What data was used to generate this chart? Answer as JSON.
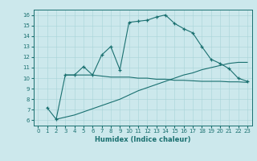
{
  "xlabel": "Humidex (Indice chaleur)",
  "ylabel": "",
  "bg_color": "#cce8ec",
  "line_color": "#1a7070",
  "xlim": [
    -0.5,
    23.5
  ],
  "ylim": [
    5.5,
    16.5
  ],
  "xticks": [
    0,
    1,
    2,
    3,
    4,
    5,
    6,
    7,
    8,
    9,
    10,
    11,
    12,
    13,
    14,
    15,
    16,
    17,
    18,
    19,
    20,
    21,
    22,
    23
  ],
  "yticks": [
    6,
    7,
    8,
    9,
    10,
    11,
    12,
    13,
    14,
    15,
    16
  ],
  "curve1_x": [
    1,
    2,
    3,
    4,
    5,
    6,
    7,
    8,
    9,
    10,
    11,
    12,
    13,
    14,
    15,
    16,
    17,
    18,
    19,
    20,
    21,
    22,
    23
  ],
  "curve1_y": [
    7.2,
    6.1,
    10.3,
    10.3,
    11.1,
    10.3,
    12.2,
    13.0,
    10.8,
    15.3,
    15.4,
    15.5,
    15.8,
    16.0,
    15.2,
    14.7,
    14.3,
    13.0,
    11.8,
    11.4,
    10.9,
    10.0,
    9.7
  ],
  "curve2_x": [
    3,
    4,
    5,
    6,
    7,
    8,
    9,
    10,
    11,
    12,
    13,
    14,
    15,
    16,
    17,
    18,
    19,
    20,
    21,
    22,
    23
  ],
  "curve2_y": [
    10.3,
    10.3,
    10.3,
    10.3,
    10.2,
    10.1,
    10.1,
    10.1,
    10.0,
    10.0,
    9.9,
    9.9,
    9.8,
    9.8,
    9.75,
    9.7,
    9.7,
    9.7,
    9.65,
    9.65,
    9.6
  ],
  "curve3_x": [
    2,
    3,
    4,
    5,
    6,
    7,
    8,
    9,
    10,
    11,
    12,
    13,
    14,
    15,
    16,
    17,
    18,
    19,
    20,
    21,
    22,
    23
  ],
  "curve3_y": [
    6.1,
    6.3,
    6.5,
    6.8,
    7.1,
    7.4,
    7.7,
    8.0,
    8.4,
    8.8,
    9.1,
    9.4,
    9.7,
    10.0,
    10.3,
    10.5,
    10.8,
    11.0,
    11.2,
    11.4,
    11.5,
    11.5
  ]
}
